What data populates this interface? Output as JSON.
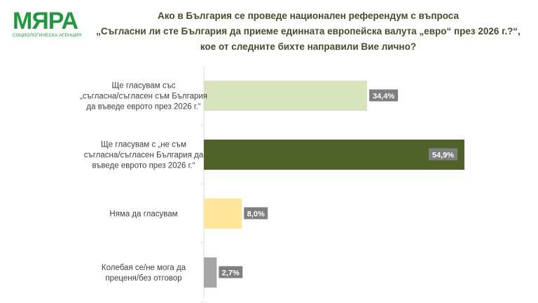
{
  "logo": {
    "name": "МЯРА",
    "subtitle": "СОЦИОЛОГИЧЕСКА АГЕНЦИЯ"
  },
  "chart_data": {
    "type": "bar",
    "orientation": "horizontal",
    "title_lines": [
      "Ако в България се проведе национален референдум с въпроса",
      "„Съгласни ли сте България да приеме единната европейска валута „евро“ през 2026 г.?“,",
      "кое от следните бихте направили Вие лично?"
    ],
    "categories": [
      [
        "Ще гласувам със",
        "„съгласна/съгласен съм България",
        "да въведе еврото през 2026 г.“"
      ],
      [
        "Ще гласувам с „не съм",
        "съгласна/съгласен България да",
        "въведе еврото през 2026 г.“"
      ],
      [
        "Няма да гласувам"
      ],
      [
        "Колебая се/не мога да",
        "преценя/без отговор"
      ]
    ],
    "values": [
      34.4,
      54.9,
      8.0,
      2.7
    ],
    "data_labels": [
      "34,4%",
      "54,9%",
      "8,0%",
      "2,7%"
    ],
    "colors": [
      "#d8e4bc",
      "#4f6228",
      "#ffe699",
      "#a6a6a6"
    ],
    "label_bg": "#7f7f7f",
    "xlim": [
      0,
      55
    ],
    "grid": false
  }
}
